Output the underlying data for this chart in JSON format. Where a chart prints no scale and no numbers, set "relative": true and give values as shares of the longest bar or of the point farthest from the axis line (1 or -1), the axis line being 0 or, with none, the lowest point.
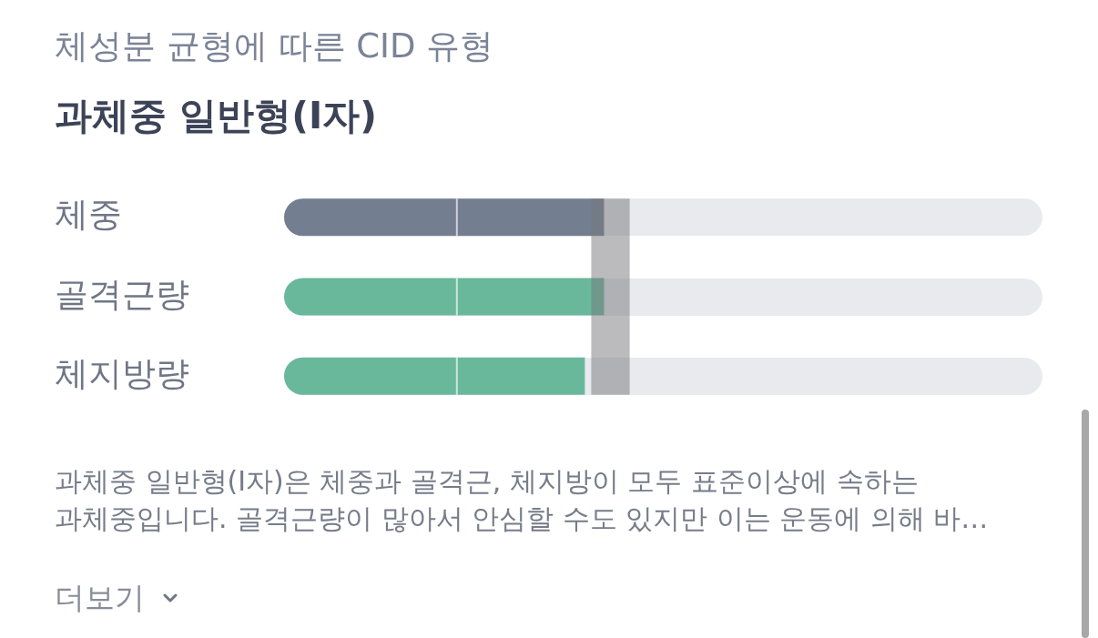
{
  "chart_data": {
    "type": "bar",
    "orientation": "horizontal",
    "relative": true,
    "subtitle": "체성분 균형에 따른 CID 유형",
    "title": "과체중 일반형(I자)",
    "categories": [
      "체중",
      "골격근량",
      "체지방량"
    ],
    "values": [
      1,
      1,
      0.94
    ],
    "colors": [
      "#737e91",
      "#69b89b",
      "#69b89b"
    ],
    "bands": [
      {
        "axis": "x",
        "from": 0.96,
        "to": 1.08,
        "color": "#77787c"
      }
    ],
    "ref_lines": [
      {
        "axis": "x",
        "value": 0.54,
        "color": "#ffffff"
      }
    ],
    "annotations": [
      "과체중 일반형(I자)은 체중과 골격근, 체지방이 모두 표준이상에 속하는\n과체중입니다. 골격근량이 많아서 안심할 수도 있지만 이는 운동에 의해 바…",
      "더보기"
    ]
  }
}
